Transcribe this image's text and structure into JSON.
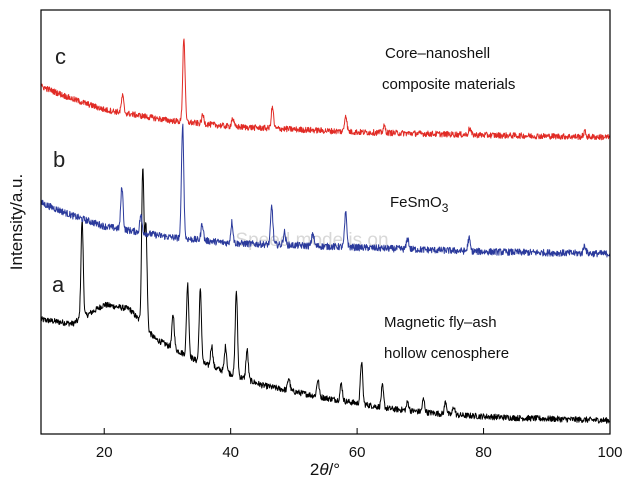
{
  "chart_data": {
    "type": "line",
    "title": "",
    "xlabel_prefix": "2",
    "xlabel_theta": "θ",
    "xlabel_unit": "/°",
    "ylabel": "Intensity/a.u.",
    "xlim": [
      10,
      100
    ],
    "x_ticks": [
      "20",
      "40",
      "60",
      "80",
      "100"
    ],
    "y_tick_labels": false,
    "grid": false,
    "legend": "none",
    "series": [
      {
        "id": "a",
        "curve_letter": "a",
        "annotation_lines": [
          "Magnetic fly–ash",
          "hollow cenosphere"
        ],
        "color": "#000000",
        "baseline": [
          [
            10,
            0.27
          ],
          [
            15,
            0.26
          ],
          [
            20,
            0.305
          ],
          [
            24,
            0.295
          ],
          [
            28,
            0.225
          ],
          [
            35,
            0.17
          ],
          [
            45,
            0.115
          ],
          [
            55,
            0.085
          ],
          [
            65,
            0.06
          ],
          [
            75,
            0.045
          ],
          [
            85,
            0.038
          ],
          [
            100,
            0.032
          ]
        ],
        "peaks": [
          [
            16.5,
            0.23
          ],
          [
            26.1,
            0.37
          ],
          [
            26.6,
            0.24
          ],
          [
            30.9,
            0.08
          ],
          [
            33.2,
            0.17
          ],
          [
            35.2,
            0.17
          ],
          [
            37.0,
            0.05
          ],
          [
            39.2,
            0.06
          ],
          [
            40.9,
            0.2
          ],
          [
            42.6,
            0.07
          ],
          [
            49.2,
            0.03
          ],
          [
            53.8,
            0.04
          ],
          [
            57.5,
            0.04
          ],
          [
            60.7,
            0.1
          ],
          [
            64.0,
            0.05
          ],
          [
            68.0,
            0.02
          ],
          [
            70.5,
            0.03
          ],
          [
            74.0,
            0.03
          ],
          [
            75.3,
            0.02
          ]
        ],
        "noise": 0.007
      },
      {
        "id": "b",
        "curve_letter": "b",
        "annotation_lines": [
          "FeSmO3"
        ],
        "color": "#2b3a9c",
        "baseline": [
          [
            10,
            0.545
          ],
          [
            15,
            0.515
          ],
          [
            20,
            0.49
          ],
          [
            30,
            0.465
          ],
          [
            40,
            0.45
          ],
          [
            60,
            0.44
          ],
          [
            80,
            0.43
          ],
          [
            100,
            0.425
          ]
        ],
        "peaks": [
          [
            22.8,
            0.1
          ],
          [
            25.8,
            0.04
          ],
          [
            32.4,
            0.27
          ],
          [
            35.5,
            0.04
          ],
          [
            40.2,
            0.05
          ],
          [
            46.5,
            0.09
          ],
          [
            48.5,
            0.03
          ],
          [
            53.0,
            0.03
          ],
          [
            58.2,
            0.08
          ],
          [
            68.0,
            0.025
          ],
          [
            77.7,
            0.03
          ],
          [
            96.0,
            0.02
          ]
        ],
        "noise": 0.008
      },
      {
        "id": "c",
        "curve_letter": "c",
        "annotation_lines": [
          "Core–nanoshell",
          "composite materials"
        ],
        "color": "#e12b25",
        "baseline": [
          [
            10,
            0.82
          ],
          [
            15,
            0.79
          ],
          [
            20,
            0.765
          ],
          [
            30,
            0.74
          ],
          [
            40,
            0.725
          ],
          [
            60,
            0.712
          ],
          [
            80,
            0.705
          ],
          [
            100,
            0.7
          ]
        ],
        "peaks": [
          [
            22.9,
            0.04
          ],
          [
            32.6,
            0.2
          ],
          [
            35.6,
            0.02
          ],
          [
            40.3,
            0.02
          ],
          [
            46.6,
            0.05
          ],
          [
            58.2,
            0.04
          ],
          [
            64.3,
            0.015
          ],
          [
            77.8,
            0.015
          ],
          [
            96.0,
            0.012
          ]
        ],
        "noise": 0.007
      }
    ]
  },
  "overlay": {
    "watermark": "Speed mode is on"
  }
}
